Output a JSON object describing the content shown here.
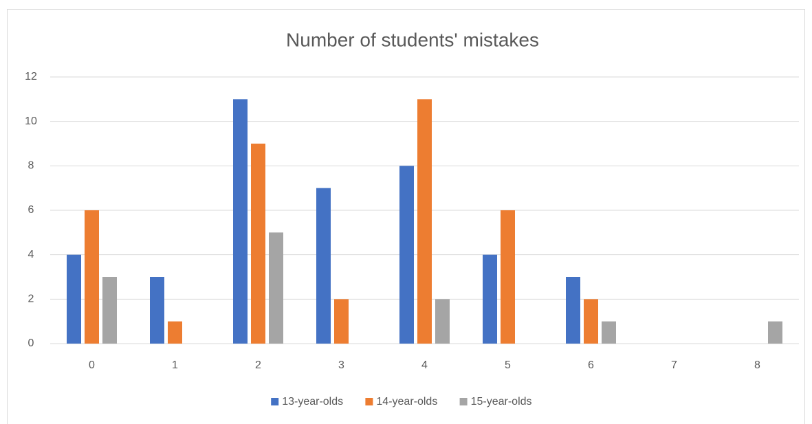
{
  "chart_data": {
    "type": "bar",
    "title": "Number of students' mistakes",
    "categories": [
      "0",
      "1",
      "2",
      "3",
      "4",
      "5",
      "6",
      "7",
      "8"
    ],
    "series": [
      {
        "name": "13-year-olds",
        "color": "#4472c4",
        "values": [
          4,
          3,
          11,
          7,
          8,
          4,
          3,
          0,
          0
        ]
      },
      {
        "name": "14-year-olds",
        "color": "#ed7d31",
        "values": [
          6,
          1,
          9,
          2,
          11,
          6,
          2,
          0,
          0
        ]
      },
      {
        "name": "15-year-olds",
        "color": "#a5a5a5",
        "values": [
          3,
          0,
          5,
          0,
          2,
          0,
          1,
          0,
          1
        ]
      }
    ],
    "ylim": [
      0,
      12
    ],
    "yticks": [
      0,
      2,
      4,
      6,
      8,
      10,
      12
    ],
    "grid": true,
    "legend": "bottom"
  }
}
